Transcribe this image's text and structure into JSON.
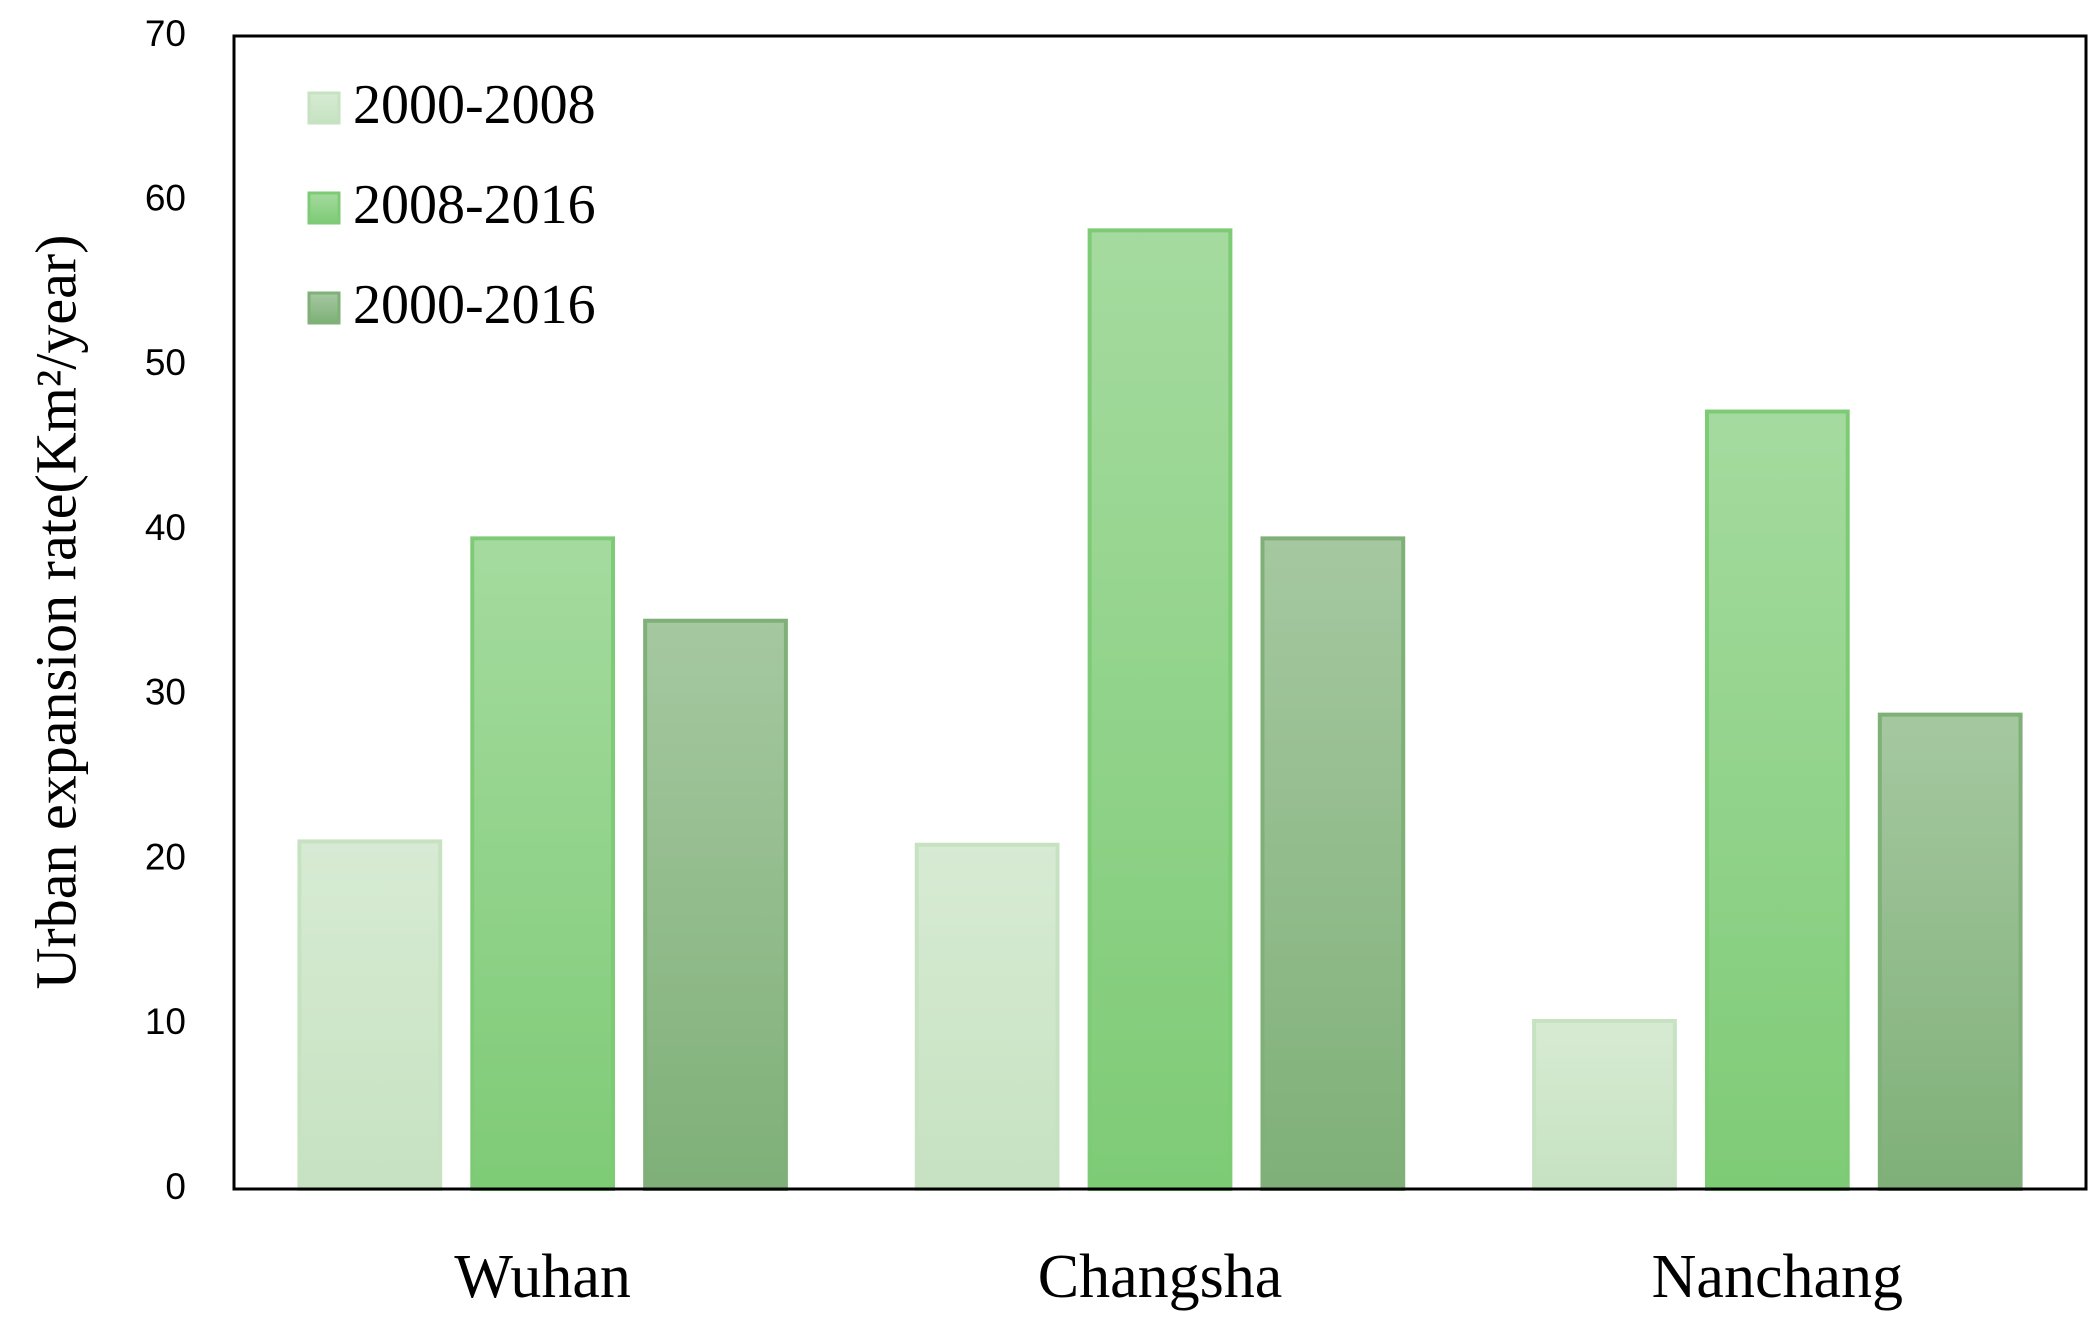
{
  "chart_data": {
    "type": "bar",
    "y_label": "Urban expansion rate(Km²/year)",
    "categories": [
      "Wuhan",
      "Changsha",
      "Nanchang"
    ],
    "series": [
      {
        "name": "2000-2008",
        "color": "#c6e2c1",
        "values": [
          21.1,
          20.9,
          10.2
        ]
      },
      {
        "name": "2008-2016",
        "color": "#7ecb76",
        "values": [
          39.5,
          58.2,
          47.2
        ]
      },
      {
        "name": "2000-2016",
        "color": "#7fb078",
        "values": [
          34.5,
          39.5,
          28.8
        ]
      }
    ],
    "ylim": [
      0,
      70
    ],
    "yticks": [
      0,
      10,
      20,
      30,
      40,
      50,
      60,
      70
    ],
    "grid": false,
    "legend": "upper left"
  }
}
